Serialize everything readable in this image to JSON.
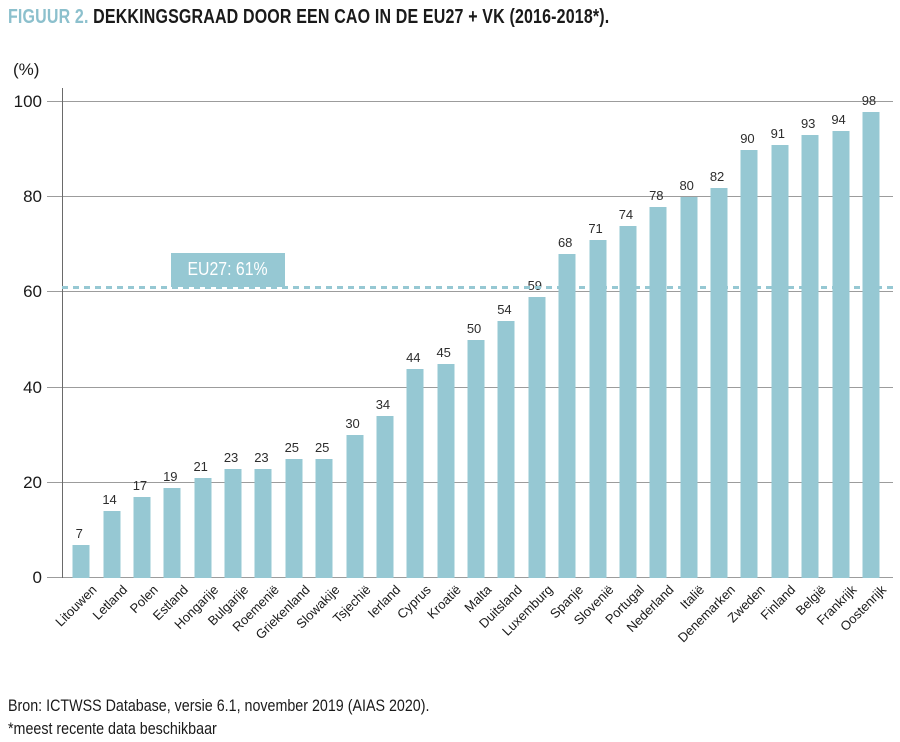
{
  "figure": {
    "title_prefix": "FIGUUR 2.",
    "title_text": "DEKKINGSGRAAD DOOR EEN CAO IN DE EU27 + VK (2016-2018*)."
  },
  "source": {
    "line1": "Bron: ICTWSS Database, versie 6.1, november 2019 (AIAS 2020).",
    "line2": "*meest recente data beschikbaar"
  },
  "chart_data": {
    "type": "bar",
    "title": "FIGUUR 2. DEKKINGSGRAAD DOOR EEN CAO IN DE EU27 + VK (2016-2018*).",
    "xlabel": "",
    "ylabel": "(%)",
    "ylim": [
      0,
      100
    ],
    "yticks": [
      0,
      20,
      40,
      60,
      80,
      100
    ],
    "grid": "horizontal",
    "legend": "none",
    "categories": [
      "Litouwen",
      "Letland",
      "Polen",
      "Estland",
      "Hongarije",
      "Bulgarije",
      "Roemenië",
      "Griekenland",
      "Slowakije",
      "Tsjechië",
      "Ierland",
      "Cyprus",
      "Kroatië",
      "Malta",
      "Duitsland",
      "Luxemburg",
      "Spanje",
      "Slovenië",
      "Portugal",
      "Nederland",
      "Italië",
      "Denemarken",
      "Zweden",
      "Finland",
      "België",
      "Frankrijk",
      "Oostenrijk"
    ],
    "values": [
      7,
      14,
      17,
      19,
      21,
      23,
      23,
      25,
      25,
      30,
      34,
      44,
      45,
      50,
      54,
      59,
      68,
      71,
      74,
      78,
      80,
      82,
      90,
      91,
      93,
      94,
      98
    ],
    "reference_line": {
      "value": 61,
      "label": "EU27: 61%"
    },
    "colors": {
      "bar": "#96c8d3",
      "accent_blue": "#8cc0cd",
      "reference": "#96c8d3",
      "grid": "#9c9c9c",
      "axis": "#6a6a6a",
      "text": "#1a1a1a",
      "reference_label_text": "#ffffff"
    }
  }
}
